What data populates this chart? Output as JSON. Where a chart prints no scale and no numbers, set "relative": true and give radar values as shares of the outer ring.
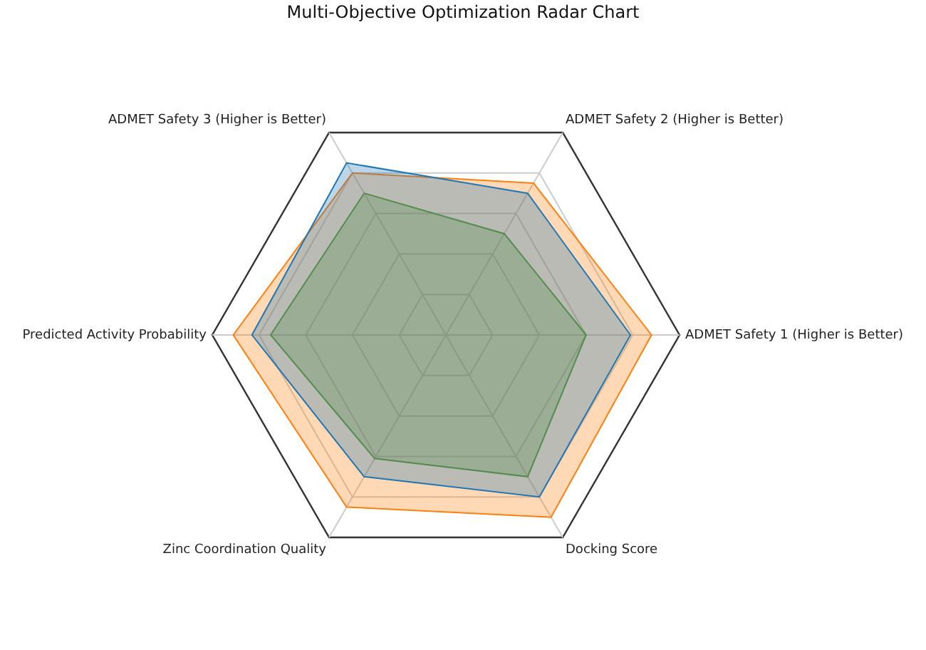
{
  "chart_data": {
    "type": "radar",
    "title": "Multi-Objective Optimization Radar Chart",
    "relative": true,
    "grid": true,
    "categories": [
      "ADMET Safety 2 (Higher is Better)",
      "ADMET Safety 1 (Higher is Better)",
      "Docking Score",
      "Zinc Coordination Quality",
      "Predicted Activity Probability",
      "ADMET Safety 3 (Higher is Better)"
    ],
    "series": [
      {
        "color": "#1f77b4",
        "values": [
          0.7,
          0.79,
          0.8,
          0.7,
          0.83,
          0.85
        ]
      },
      {
        "color": "#ff7f0e",
        "values": [
          0.75,
          0.88,
          0.9,
          0.85,
          0.91,
          0.8
        ]
      },
      {
        "color": "#2ca02c",
        "values": [
          0.5,
          0.6,
          0.7,
          0.61,
          0.75,
          0.7
        ]
      }
    ]
  }
}
